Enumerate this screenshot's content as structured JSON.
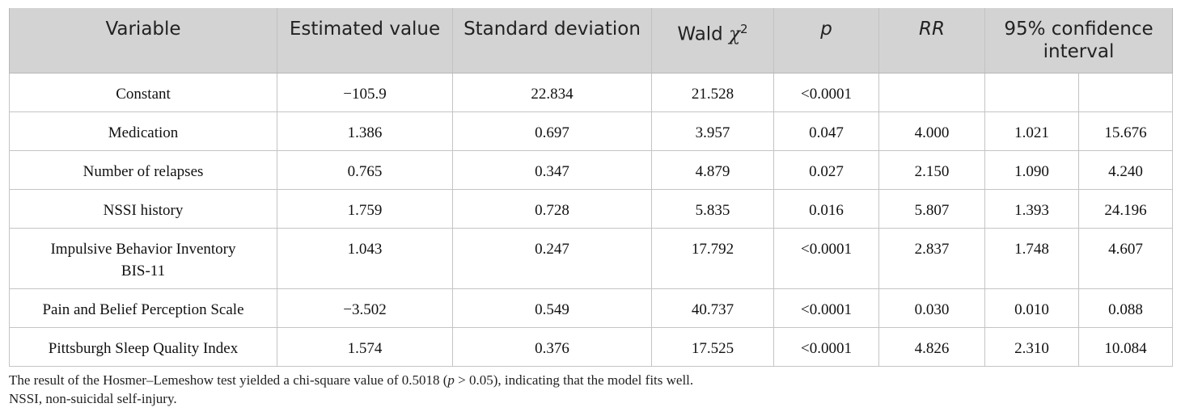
{
  "table": {
    "headers": {
      "variable": "Variable",
      "estimated": "Estimated value",
      "sd": "Standard deviation",
      "wald": "Wald",
      "wald_symbol": "χ",
      "wald_sup": "2",
      "p": "p",
      "rr": "RR",
      "ci": "95% confidence interval"
    },
    "rows": [
      {
        "variable": "Constant",
        "estimated": "−105.9",
        "sd": "22.834",
        "wald": "21.528",
        "p": "<0.0001",
        "rr": "",
        "ci_low": "",
        "ci_high": ""
      },
      {
        "variable": "Medication",
        "estimated": "1.386",
        "sd": "0.697",
        "wald": "3.957",
        "p": "0.047",
        "rr": "4.000",
        "ci_low": "1.021",
        "ci_high": "15.676"
      },
      {
        "variable": "Number of relapses",
        "estimated": "0.765",
        "sd": "0.347",
        "wald": "4.879",
        "p": "0.027",
        "rr": "2.150",
        "ci_low": "1.090",
        "ci_high": "4.240"
      },
      {
        "variable": "NSSI history",
        "estimated": "1.759",
        "sd": "0.728",
        "wald": "5.835",
        "p": "0.016",
        "rr": "5.807",
        "ci_low": "1.393",
        "ci_high": "24.196"
      },
      {
        "variable": "Impulsive Behavior Inventory BIS-11",
        "estimated": "1.043",
        "sd": "0.247",
        "wald": "17.792",
        "p": "<0.0001",
        "rr": "2.837",
        "ci_low": "1.748",
        "ci_high": "4.607"
      },
      {
        "variable": "Pain and Belief Perception Scale",
        "estimated": "−3.502",
        "sd": "0.549",
        "wald": "40.737",
        "p": "<0.0001",
        "rr": "0.030",
        "ci_low": "0.010",
        "ci_high": "0.088"
      },
      {
        "variable": "Pittsburgh Sleep Quality Index",
        "estimated": "1.574",
        "sd": "0.376",
        "wald": "17.525",
        "p": "<0.0001",
        "rr": "4.826",
        "ci_low": "2.310",
        "ci_high": "10.084"
      }
    ]
  },
  "notes": {
    "line1_a": "The result of the Hosmer–Lemeshow test yielded a chi-square value of 0.5018 (",
    "line1_p": "p",
    "line1_b": " > 0.05), indicating that the model fits well.",
    "line2": "NSSI, non-suicidal self-injury."
  }
}
